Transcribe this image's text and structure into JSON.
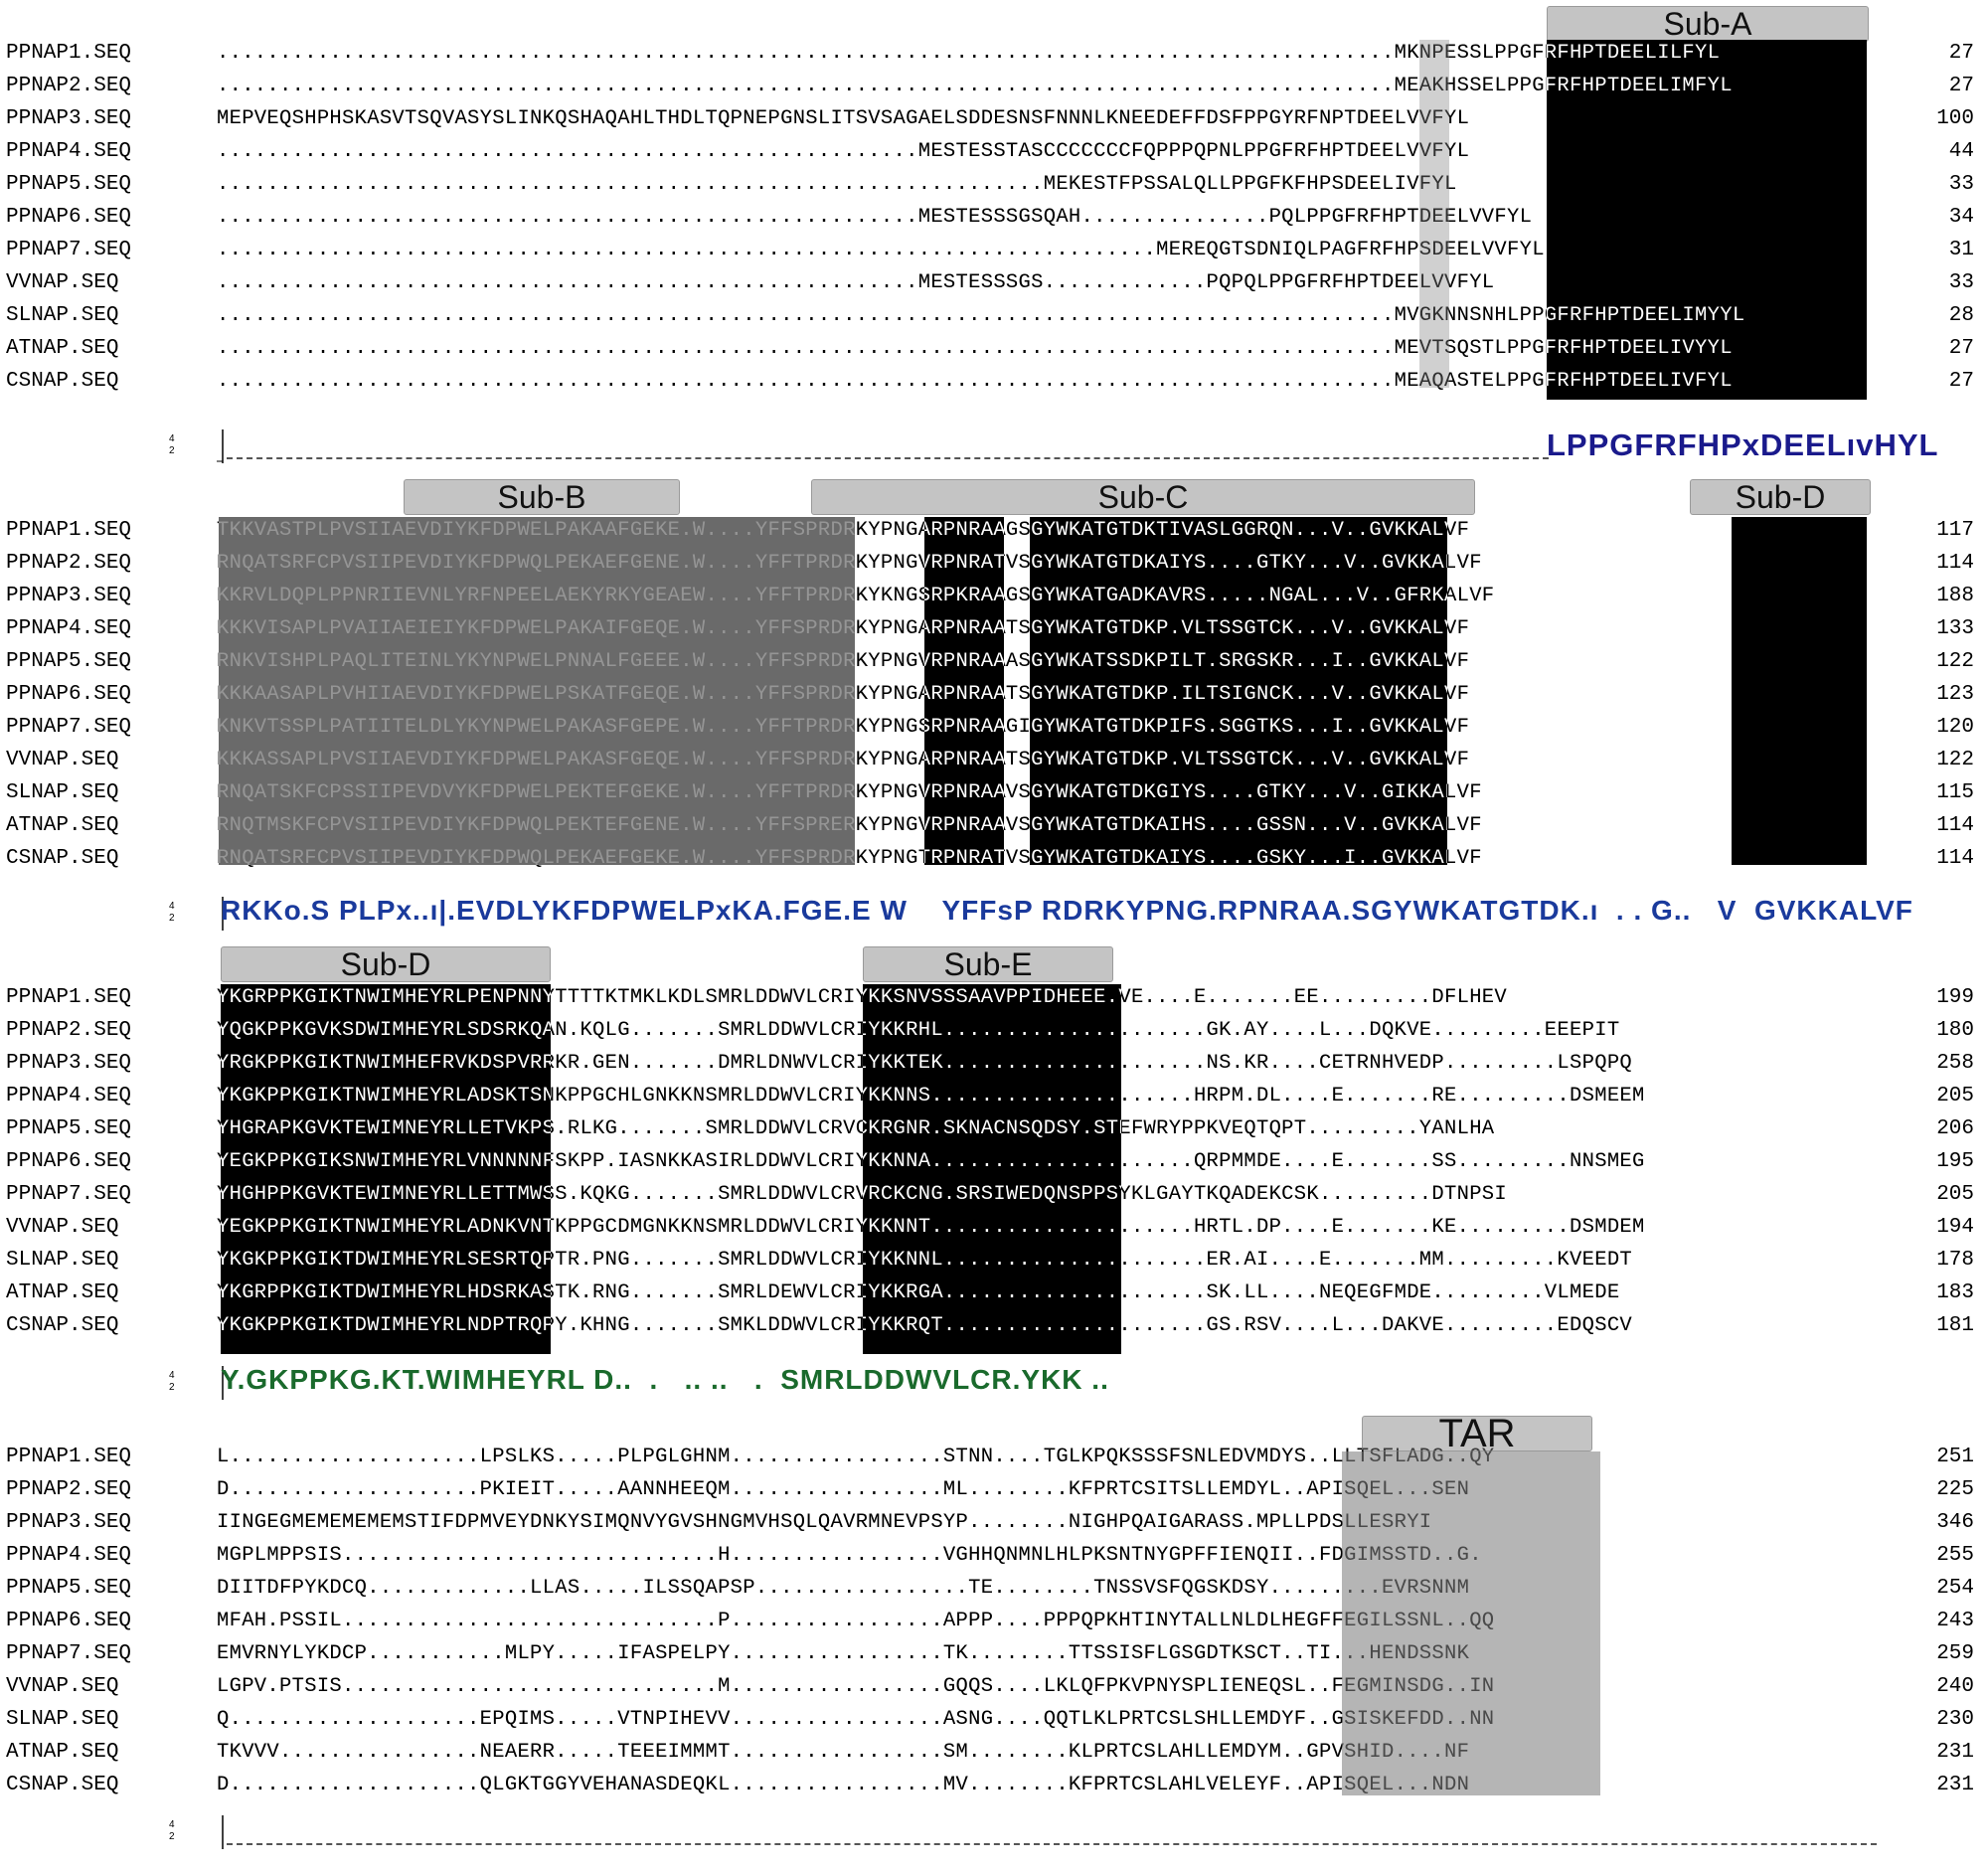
{
  "blocks": [
    {
      "labels": [
        {
          "text": "Sub-A"
        }
      ],
      "rows": [
        {
          "name": "PPNAP1.SEQ",
          "seq": "..............................................................................................MKNPESSLPPGFRFHPTDEELILFYL",
          "num": "27"
        },
        {
          "name": "PPNAP2.SEQ",
          "seq": "..............................................................................................MEAKHSSELPPGFRFHPTDEELIMFYL",
          "num": "27"
        },
        {
          "name": "PPNAP3.SEQ",
          "seq": "MEPVEQSHPHSKASVTSQVASYSLINKQSHAQAHLTHDLTQPNEPGNSLITSVSAGAELSDDESNSFNNNLKNEEDEFFDSFPPGYRFNPTDEELVVFYL",
          "num": "100"
        },
        {
          "name": "PPNAP4.SEQ",
          "seq": "........................................................MESTESSTASCCCCCCCFQPPPQPNLPPGFRFHPTDEELVVFYL",
          "num": "44"
        },
        {
          "name": "PPNAP5.SEQ",
          "seq": "..................................................................MEKESTFPSSALQLLPPGFKFHPSDEELIVFYL",
          "num": "33"
        },
        {
          "name": "PPNAP6.SEQ",
          "seq": "........................................................MESTESSSGSQAH...............PQLPPGFRFHPTDEELVVFYL",
          "num": "34"
        },
        {
          "name": "PPNAP7.SEQ",
          "seq": "...........................................................................MEREQGTSDNIQLPAGFRFHPSDEELVVFYL",
          "num": "31"
        },
        {
          "name": "VVNAP.SEQ",
          "seq": "........................................................MESTESSSGS.............PQPQLPPGFRFHPTDEELVVFYL",
          "num": "33"
        },
        {
          "name": "SLNAP.SEQ",
          "seq": "..............................................................................................MVGKNNSNHLPPGFRFHPTDEELIMYYL",
          "num": "28"
        },
        {
          "name": "ATNAP.SEQ",
          "seq": "..............................................................................................MEVTSQSTLPPGFRFHPTDEELIVYYL",
          "num": "27"
        },
        {
          "name": "CSNAP.SEQ",
          "seq": "..............................................................................................MEAQASTELPPGFRFHPTDEELIVFYL",
          "num": "27"
        }
      ],
      "logo": "LPPGFRFHPxDEELıvHYL"
    },
    {
      "labels": [
        {
          "text": "Sub-B"
        },
        {
          "text": "Sub-C"
        },
        {
          "text": "Sub-D"
        }
      ],
      "rows": [
        {
          "name": "PPNAP1.SEQ",
          "seq": "TKKVASTPLPVSIIAEVDIYKFDPWELPAKAAFGEKE.W....YFFSPRDRKYPNGARPNRAAGSGYWKATGTDKTIVASLGGRQN...V..GVKKALVF",
          "num": "117"
        },
        {
          "name": "PPNAP2.SEQ",
          "seq": "RNQATSRFCPVSIIPEVDIYKFDPWQLPEKAEFGENE.W....YFFTPRDRKYPNGVRPNRATVSGYWKATGTDKAIYS....GTKY...V..GVKKALVF",
          "num": "114"
        },
        {
          "name": "PPNAP3.SEQ",
          "seq": "KKRVLDQPLPPNRIIEVNLYRFNPEELAEKYRKYGEAEW....YFFTPRDRKYKNGSRPKRAAGSGYWKATGADKAVRS.....NGAL...V..GFRKALVF",
          "num": "188"
        },
        {
          "name": "PPNAP4.SEQ",
          "seq": "KKKVISAPLPVAIIAEIEIYKFDPWELPAKAIFGEQE.W....YFFSPRDRKYPNGARPNRAATSGYWKATGTDKP.VLTSSGTCK...V..GVKKALVF",
          "num": "133"
        },
        {
          "name": "PPNAP5.SEQ",
          "seq": "RNKVISHPLPAQLITEINLYKYNPWELPNNALFGEEE.W....YFFSPRDRKYPNGVRPNRAAASGYWKATSSDKPILT.SRGSKR...I..GVKKALVF",
          "num": "122"
        },
        {
          "name": "PPNAP6.SEQ",
          "seq": "KKKAASAPLPVHIIAEVDIYKFDPWELPSKATFGEQE.W....YFFSPRDRKYPNGARPNRAATSGYWKATGTDKP.ILTSIGNCK...V..GVKKALVF",
          "num": "123"
        },
        {
          "name": "PPNAP7.SEQ",
          "seq": "KNKVTSSPLPATIITELDLYKYNPWELPAKASFGEPE.W....YFFTPRDRKYPNGSRPNRAAGIGYWKATGTDKPIFS.SGGTKS...I..GVKKALVF",
          "num": "120"
        },
        {
          "name": "VVNAP.SEQ",
          "seq": "KKKASSAPLPVSIIAEVDIYKFDPWELPAKASFGEQE.W....YFFSPRDRKYPNGARPNRAATSGYWKATGTDKP.VLTSSGTCK...V..GVKKALVF",
          "num": "122"
        },
        {
          "name": "SLNAP.SEQ",
          "seq": "RNQATSKFCPSSIIPEVDVYKFDPWELPEKTEFGEKE.W....YFFTPRDRKYPNGVRPNRAAVSGYWKATGTDKGIYS....GTKY...V..GIKKALVF",
          "num": "115"
        },
        {
          "name": "ATNAP.SEQ",
          "seq": "RNQTMSKFCPVSIIPEVDIYKFDPWQLPEKTEFGENE.W....YFFSPRERKYPNGVRPNRAAVSGYWKATGTDKAIHS....GSSN...V..GVKKALVF",
          "num": "114"
        },
        {
          "name": "CSNAP.SEQ",
          "seq": "RNQATSRFCPVSIIPEVDIYKFDPWQLPEKAEFGEKE.W....YFFSPRDRKYPNGTRPNRATVSGYWKATGTDKAIYS....GSKY...I..GVKKALVF",
          "num": "114"
        }
      ],
      "logo": "RKKo.S PLPx..ı|.EVDLYKFDPWELPxKA.FGE.E W    YFFsP RDRKYPNG.RPNRAA.SGYWKATGTDK.ı  . . G..   V  GVKKALVF"
    },
    {
      "labels": [
        {
          "text": "Sub-D"
        },
        {
          "text": "Sub-E"
        }
      ],
      "rows": [
        {
          "name": "PPNAP1.SEQ",
          "seq": "YKGRPPKGIKTNWIMHEYRLPENPNNYTTTTKTMKLKDLSMRLDDWVLCRIYKKSNVSSSAAVPPIDHEEE.VE....E.......EE.........DFLHEV",
          "num": "199"
        },
        {
          "name": "PPNAP2.SEQ",
          "seq": "YQGKPPKGVKSDWIMHEYRLSDSRKQAN.KQLG.......SMRLDDWVLCRIYKKRHL.....................GK.AY....L...DQKVE.........EEEPIT",
          "num": "180"
        },
        {
          "name": "PPNAP3.SEQ",
          "seq": "YRGKPPKGIKTNWIMHEFRVKDSPVRRKR.GEN.......DMRLDNWVLCRIYKKTEK.....................NS.KR....CETRNHVEDP.........LSPQPQ",
          "num": "258"
        },
        {
          "name": "PPNAP4.SEQ",
          "seq": "YKGKPPKGIKTNWIMHEYRLADSKTSNKPPGCHLGNKKNSMRLDDWVLCRIYKKNNS.....................HRPM.DL....E.......RE.........DSMEEM",
          "num": "205"
        },
        {
          "name": "PPNAP5.SEQ",
          "seq": "YHGRAPKGVKTEWIMNEYRLLETVKPS.RLKG.......SMRLDDWVLCRVCKRGNR.SKNACNSQDSY.STEFWRYPPKVEQTQPT.........YANLHA",
          "num": "206"
        },
        {
          "name": "PPNAP6.SEQ",
          "seq": "YEGKPPKGIKSNWIMHEYRLVNNNNNFSKPP.IASNKKASIRLDDWVLCRIYKKNNA.....................QRPMMDE....E.......SS.........NNSMEG",
          "num": "195"
        },
        {
          "name": "PPNAP7.SEQ",
          "seq": "YHGHPPKGVKTEWIMNEYRLLETTMWSS.KQKG.......SMRLDDWVLCRVRCKCNG.SRSIWEDQNSPPSYKLGAYTKQADEKCSK.........DTNPSI",
          "num": "205"
        },
        {
          "name": "VVNAP.SEQ",
          "seq": "YEGKPPKGIKTNWIMHEYRLADNKVNTKPPGCDMGNKKNSMRLDDWVLCRIYKKNNT.....................HRTL.DP....E.......KE.........DSMDEM",
          "num": "194"
        },
        {
          "name": "SLNAP.SEQ",
          "seq": "YKGKPPKGIKTDWIMHEYRLSESRTQPTR.PNG.......SMRLDDWVLCRIYKKNNL.....................ER.AI....E.......MM.........KVEEDT",
          "num": "178"
        },
        {
          "name": "ATNAP.SEQ",
          "seq": "YKGRPPKGIKTDWIMHEYRLHDSRKASTK.RNG.......SMRLDEWVLCRIYKKRGA.....................SK.LL....NEQEGFMDE.........VLMEDE",
          "num": "183"
        },
        {
          "name": "CSNAP.SEQ",
          "seq": "YKGKPPKGIKTDWIMHEYRLNDPTRQPY.KHNG.......SMKLDDWVLCRIYKKRQT.....................GS.RSV....L...DAKVE.........EDQSCV",
          "num": "181"
        }
      ],
      "logo": "Y.GKPPKG.KT.WIMHEYRL D..  .   .. ..   .  SMRLDDWVLCR.YKK .."
    },
    {
      "labels": [
        {
          "text": "TAR"
        }
      ],
      "rows": [
        {
          "name": "PPNAP1.SEQ",
          "seq": "L....................LPSLKS.....PLPGLGHNM.................STNN....TGLKPQKSSSFSNLEDVMDYS..LLTSFLADG..QY",
          "num": "251"
        },
        {
          "name": "PPNAP2.SEQ",
          "seq": "D....................PKIEIT.....AANNHEEQM.................ML........KFPRTCSITSLLEMDYL..APISQEL...SEN",
          "num": "225"
        },
        {
          "name": "PPNAP3.SEQ",
          "seq": "IINGEGMEMEMEMEMSTIFDPMVEYDNKYSIMQNVYGVSHNGMVHSQLQAVRMNEVPSYP........NIGHPQAIGARASS.MPLLPDSLLESRYI",
          "num": "346"
        },
        {
          "name": "PPNAP4.SEQ",
          "seq": "MGPLMPPSIS..............................H.................VGHHQNMNLHLPKSNTNYGPFFIENQII..FDGIMSSTD..G.",
          "num": "255"
        },
        {
          "name": "PPNAP5.SEQ",
          "seq": "DIITDFPYKDCQ.............LLAS.....ILSSQAPSP.................TE........TNSSVSFQGSKDSY.........EVRSNNM",
          "num": "254"
        },
        {
          "name": "PPNAP6.SEQ",
          "seq": "MFAH.PSSIL..............................P.................APPP....PPPQPKHTINYTALLNLDLHEGFFEGILSSNL..QQ",
          "num": "243"
        },
        {
          "name": "PPNAP7.SEQ",
          "seq": "EMVRNYLYKDCP...........MLPY.....IFASPELPY.................TK........TTSSISFLGSGDTKSCT..TI...HENDSSNK",
          "num": "259"
        },
        {
          "name": "VVNAP.SEQ",
          "seq": "LGPV.PTSIS..............................M.................GQQS....LKLQFPKVPNYSPLIENEQSL..FEGMINSDG..IN",
          "num": "240"
        },
        {
          "name": "SLNAP.SEQ",
          "seq": "Q....................EPQIMS.....VTNPIHEVV.................ASNG....QQTLKLPRTCSLSHLLEMDYF..GSISKEFDD..NN",
          "num": "230"
        },
        {
          "name": "ATNAP.SEQ",
          "seq": "TKVVV................NEAERR.....TEEEIMMMT.................SM........KLPRTCSLAHLLEMDYM..GPVSHID....NF",
          "num": "231"
        },
        {
          "name": "CSNAP.SEQ",
          "seq": "D....................QLGKTGGYVEHANASDEQKL.................MV........KFPRTCSLAHLVELEYF..APISQEL...NDN",
          "num": "231"
        }
      ],
      "logo": ""
    }
  ],
  "colors": {
    "conserved": "#000000",
    "similar": "#6a6a6a",
    "weak": "#b5b5b5",
    "label_bar": "#c4c4c4"
  }
}
